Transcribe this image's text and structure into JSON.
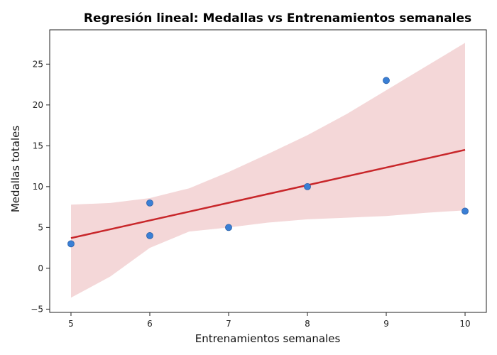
{
  "chart_data": {
    "type": "scatter",
    "title": "Regresión lineal: Medallas vs Entrenamientos semanales",
    "xlabel": "Entrenamientos semanales",
    "ylabel": "Medallas totales",
    "xlim": [
      4.73,
      10.27
    ],
    "ylim": [
      -5.4,
      29.2
    ],
    "xticks": [
      5,
      6,
      7,
      8,
      9,
      10
    ],
    "yticks": [
      -5,
      0,
      5,
      10,
      15,
      20,
      25
    ],
    "grid": false,
    "points": [
      {
        "x": 5,
        "y": 3
      },
      {
        "x": 6,
        "y": 4
      },
      {
        "x": 6,
        "y": 8
      },
      {
        "x": 7,
        "y": 5
      },
      {
        "x": 8,
        "y": 10
      },
      {
        "x": 9,
        "y": 23
      },
      {
        "x": 10,
        "y": 7
      }
    ],
    "regression_line": [
      {
        "x": 5,
        "y": 3.7
      },
      {
        "x": 10,
        "y": 14.5
      }
    ],
    "confidence_band": {
      "x": [
        5,
        5.5,
        6,
        6.5,
        7,
        7.5,
        8,
        8.5,
        9,
        9.5,
        10
      ],
      "upper": [
        7.8,
        8.0,
        8.6,
        9.8,
        11.8,
        14.0,
        16.3,
        18.9,
        21.8,
        24.7,
        27.6
      ],
      "lower": [
        -3.6,
        -1.0,
        2.5,
        4.5,
        5.0,
        5.6,
        6.0,
        6.2,
        6.4,
        6.8,
        7.1
      ]
    },
    "colors": {
      "points": "#3a7fd5",
      "point_edge": "#2a5fa8",
      "line": "#c8262a",
      "band": "#f4d7d8"
    }
  }
}
